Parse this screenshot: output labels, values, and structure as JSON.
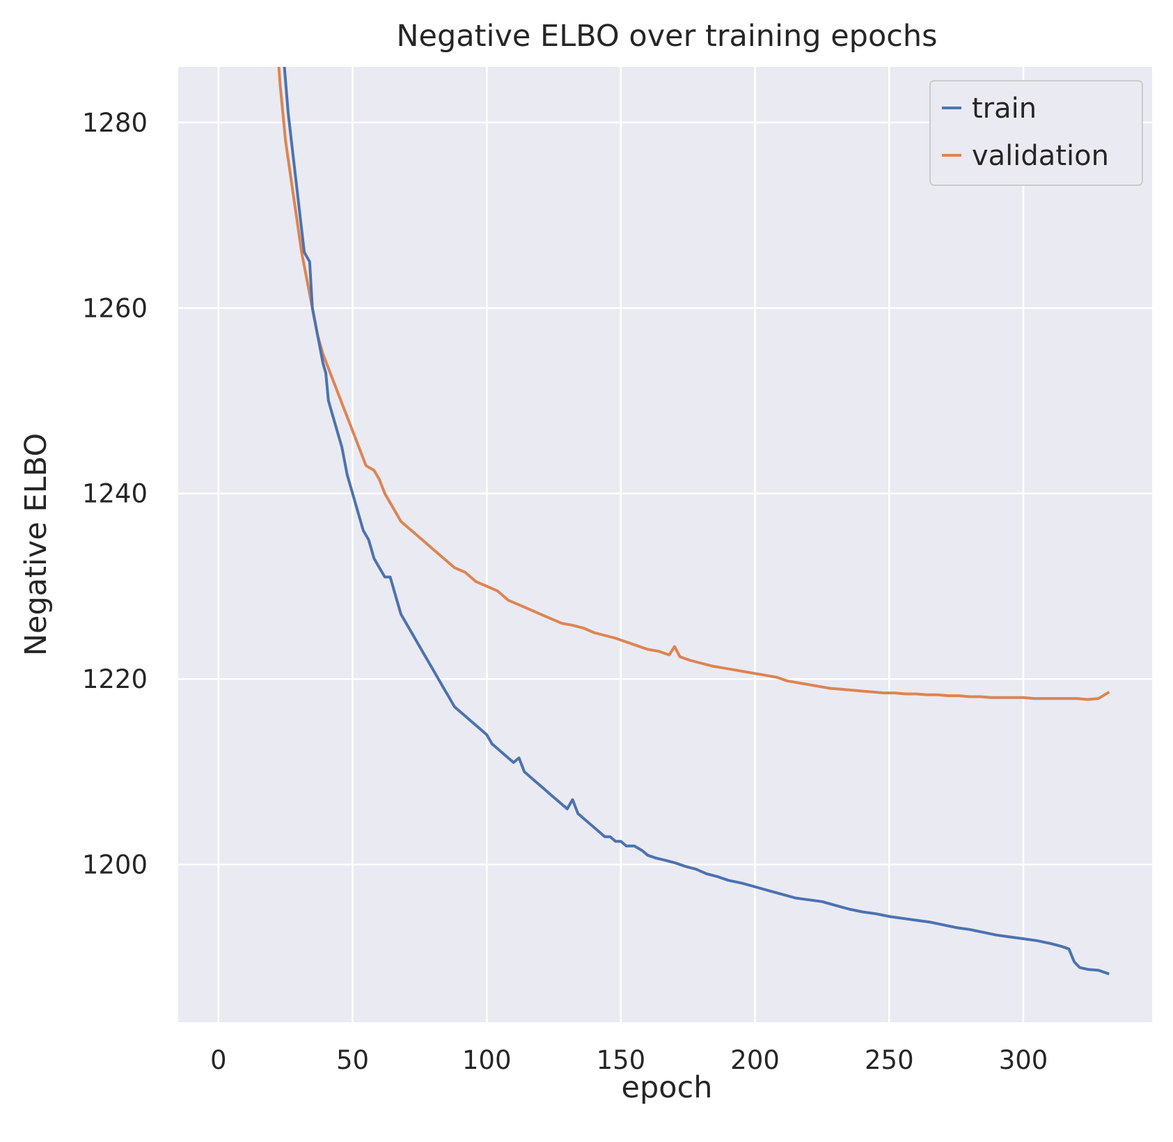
{
  "chart_data": {
    "type": "line",
    "title": "Negative ELBO over training epochs",
    "xlabel": "epoch",
    "ylabel": "Negative ELBO",
    "xlim": [
      -15,
      348
    ],
    "ylim": [
      1183,
      1286
    ],
    "xticks": [
      0,
      50,
      100,
      150,
      200,
      250,
      300
    ],
    "yticks": [
      1200,
      1220,
      1240,
      1260,
      1280
    ],
    "grid": true,
    "legend_position": "top-right",
    "series": [
      {
        "name": "train",
        "color": "#4c72b0",
        "points": [
          [
            24,
            1288
          ],
          [
            26,
            1281
          ],
          [
            28,
            1276
          ],
          [
            30,
            1271
          ],
          [
            32,
            1266
          ],
          [
            34,
            1265
          ],
          [
            35,
            1260
          ],
          [
            37,
            1257
          ],
          [
            39,
            1254
          ],
          [
            40,
            1253
          ],
          [
            41,
            1250
          ],
          [
            43,
            1248
          ],
          [
            45,
            1246
          ],
          [
            46,
            1245
          ],
          [
            48,
            1242
          ],
          [
            50,
            1240
          ],
          [
            52,
            1238
          ],
          [
            54,
            1236
          ],
          [
            56,
            1235
          ],
          [
            58,
            1233
          ],
          [
            60,
            1232
          ],
          [
            62,
            1231
          ],
          [
            64,
            1231
          ],
          [
            66,
            1229
          ],
          [
            68,
            1227
          ],
          [
            70,
            1226
          ],
          [
            72,
            1225
          ],
          [
            74,
            1224
          ],
          [
            76,
            1223
          ],
          [
            78,
            1222
          ],
          [
            80,
            1221
          ],
          [
            82,
            1220
          ],
          [
            84,
            1219
          ],
          [
            86,
            1218
          ],
          [
            88,
            1217
          ],
          [
            90,
            1216.5
          ],
          [
            92,
            1216
          ],
          [
            94,
            1215.5
          ],
          [
            96,
            1215
          ],
          [
            98,
            1214.5
          ],
          [
            100,
            1214
          ],
          [
            102,
            1213
          ],
          [
            104,
            1212.5
          ],
          [
            106,
            1212
          ],
          [
            108,
            1211.5
          ],
          [
            110,
            1211
          ],
          [
            112,
            1211.5
          ],
          [
            114,
            1210
          ],
          [
            116,
            1209.5
          ],
          [
            118,
            1209
          ],
          [
            120,
            1208.5
          ],
          [
            122,
            1208
          ],
          [
            124,
            1207.5
          ],
          [
            126,
            1207
          ],
          [
            128,
            1206.5
          ],
          [
            130,
            1206
          ],
          [
            132,
            1207
          ],
          [
            134,
            1205.5
          ],
          [
            136,
            1205
          ],
          [
            138,
            1204.5
          ],
          [
            140,
            1204
          ],
          [
            142,
            1203.5
          ],
          [
            144,
            1203
          ],
          [
            146,
            1203
          ],
          [
            148,
            1202.5
          ],
          [
            150,
            1202.5
          ],
          [
            152,
            1202
          ],
          [
            155,
            1202
          ],
          [
            158,
            1201.5
          ],
          [
            160,
            1201
          ],
          [
            163,
            1200.7
          ],
          [
            166,
            1200.5
          ],
          [
            170,
            1200.2
          ],
          [
            174,
            1199.8
          ],
          [
            178,
            1199.5
          ],
          [
            182,
            1199
          ],
          [
            186,
            1198.7
          ],
          [
            190,
            1198.3
          ],
          [
            195,
            1198
          ],
          [
            200,
            1197.6
          ],
          [
            205,
            1197.2
          ],
          [
            210,
            1196.8
          ],
          [
            215,
            1196.4
          ],
          [
            220,
            1196.2
          ],
          [
            225,
            1196
          ],
          [
            230,
            1195.6
          ],
          [
            235,
            1195.2
          ],
          [
            240,
            1194.9
          ],
          [
            245,
            1194.7
          ],
          [
            250,
            1194.4
          ],
          [
            255,
            1194.2
          ],
          [
            260,
            1194
          ],
          [
            265,
            1193.8
          ],
          [
            270,
            1193.5
          ],
          [
            275,
            1193.2
          ],
          [
            280,
            1193
          ],
          [
            285,
            1192.7
          ],
          [
            290,
            1192.4
          ],
          [
            295,
            1192.2
          ],
          [
            300,
            1192
          ],
          [
            305,
            1191.8
          ],
          [
            310,
            1191.5
          ],
          [
            314,
            1191.2
          ],
          [
            317,
            1190.9
          ],
          [
            319,
            1189.5
          ],
          [
            321,
            1188.9
          ],
          [
            324,
            1188.7
          ],
          [
            328,
            1188.6
          ],
          [
            332,
            1188.2
          ]
        ]
      },
      {
        "name": "validation",
        "color": "#dd8452",
        "points": [
          [
            22,
            1288
          ],
          [
            23,
            1284
          ],
          [
            25,
            1278
          ],
          [
            27,
            1274
          ],
          [
            29,
            1270
          ],
          [
            31,
            1266
          ],
          [
            33,
            1263
          ],
          [
            35,
            1260
          ],
          [
            37,
            1257
          ],
          [
            39,
            1255
          ],
          [
            41,
            1253.5
          ],
          [
            43,
            1252
          ],
          [
            45,
            1250.5
          ],
          [
            47,
            1249
          ],
          [
            49,
            1247.5
          ],
          [
            51,
            1246
          ],
          [
            53,
            1244.5
          ],
          [
            55,
            1243
          ],
          [
            58,
            1242.5
          ],
          [
            60,
            1241.5
          ],
          [
            62,
            1240
          ],
          [
            64,
            1239
          ],
          [
            66,
            1238
          ],
          [
            68,
            1237
          ],
          [
            70,
            1236.5
          ],
          [
            72,
            1236
          ],
          [
            74,
            1235.5
          ],
          [
            76,
            1235
          ],
          [
            80,
            1234
          ],
          [
            84,
            1233
          ],
          [
            88,
            1232
          ],
          [
            92,
            1231.5
          ],
          [
            96,
            1230.5
          ],
          [
            100,
            1230
          ],
          [
            104,
            1229.5
          ],
          [
            108,
            1228.5
          ],
          [
            112,
            1228
          ],
          [
            116,
            1227.5
          ],
          [
            120,
            1227
          ],
          [
            124,
            1226.5
          ],
          [
            128,
            1226
          ],
          [
            132,
            1225.8
          ],
          [
            136,
            1225.5
          ],
          [
            140,
            1225
          ],
          [
            144,
            1224.7
          ],
          [
            148,
            1224.4
          ],
          [
            152,
            1224
          ],
          [
            156,
            1223.6
          ],
          [
            160,
            1223.2
          ],
          [
            164,
            1223
          ],
          [
            168,
            1222.6
          ],
          [
            170,
            1223.5
          ],
          [
            172,
            1222.4
          ],
          [
            176,
            1222
          ],
          [
            180,
            1221.7
          ],
          [
            184,
            1221.4
          ],
          [
            188,
            1221.2
          ],
          [
            192,
            1221
          ],
          [
            196,
            1220.8
          ],
          [
            200,
            1220.6
          ],
          [
            204,
            1220.4
          ],
          [
            208,
            1220.2
          ],
          [
            212,
            1219.8
          ],
          [
            216,
            1219.6
          ],
          [
            220,
            1219.4
          ],
          [
            224,
            1219.2
          ],
          [
            228,
            1219
          ],
          [
            232,
            1218.9
          ],
          [
            236,
            1218.8
          ],
          [
            240,
            1218.7
          ],
          [
            244,
            1218.6
          ],
          [
            248,
            1218.5
          ],
          [
            252,
            1218.5
          ],
          [
            256,
            1218.4
          ],
          [
            260,
            1218.4
          ],
          [
            264,
            1218.3
          ],
          [
            268,
            1218.3
          ],
          [
            272,
            1218.2
          ],
          [
            276,
            1218.2
          ],
          [
            280,
            1218.1
          ],
          [
            284,
            1218.1
          ],
          [
            288,
            1218
          ],
          [
            292,
            1218
          ],
          [
            296,
            1218
          ],
          [
            300,
            1218
          ],
          [
            304,
            1217.9
          ],
          [
            308,
            1217.9
          ],
          [
            312,
            1217.9
          ],
          [
            316,
            1217.9
          ],
          [
            320,
            1217.9
          ],
          [
            324,
            1217.8
          ],
          [
            328,
            1217.9
          ],
          [
            332,
            1218.6
          ]
        ]
      }
    ]
  }
}
